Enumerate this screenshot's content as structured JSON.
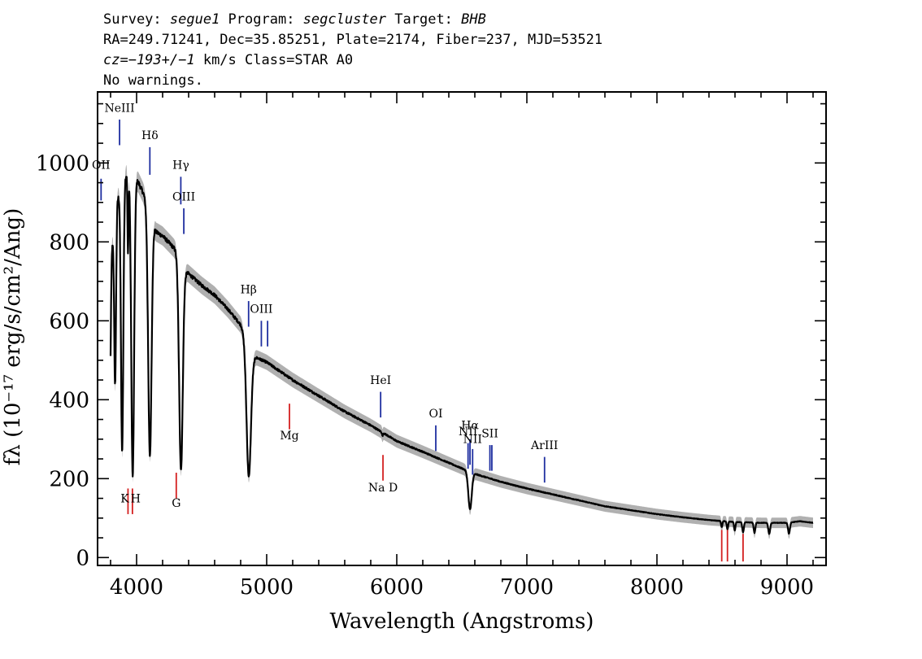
{
  "header": {
    "line1": [
      {
        "t": "Survey: ",
        "i": false
      },
      {
        "t": "segue1",
        "i": true
      },
      {
        "t": " Program: ",
        "i": false
      },
      {
        "t": "segcluster",
        "i": true
      },
      {
        "t": " Target: ",
        "i": false
      },
      {
        "t": "BHB",
        "i": true
      }
    ],
    "line2": [
      {
        "t": "RA=249.71241, Dec=35.85251, Plate=2174, Fiber=237, MJD=53521",
        "i": false
      }
    ],
    "line3": [
      {
        "t": "cz=−193+/−1",
        "i": true
      },
      {
        "t": " km/s Class=STAR A0",
        "i": false
      }
    ],
    "line4": [
      {
        "t": "No warnings.",
        "i": false
      }
    ]
  },
  "colors": {
    "emission": "#1f2fa0",
    "absorption": "#d42020",
    "spectrum": "#000000",
    "error_band": "#b0b0b0"
  },
  "chart_data": {
    "type": "line",
    "xlabel": "Wavelength (Angstroms)",
    "ylabel": "fλ (10⁻¹⁷ erg/s/cm²/Ang)",
    "xlim": [
      3700,
      9300
    ],
    "ylim": [
      -20,
      1180
    ],
    "x_ticks": [
      4000,
      5000,
      6000,
      7000,
      8000,
      9000
    ],
    "y_ticks": [
      0,
      200,
      400,
      600,
      800,
      1000
    ],
    "x_minor_step": 200,
    "y_minor_step": 50,
    "continuum": [
      [
        3800,
        750
      ],
      [
        3850,
        905
      ],
      [
        3900,
        960
      ],
      [
        3950,
        985
      ],
      [
        4000,
        960
      ],
      [
        4050,
        925
      ],
      [
        4100,
        880
      ],
      [
        4150,
        825
      ],
      [
        4200,
        815
      ],
      [
        4300,
        780
      ],
      [
        4380,
        725
      ],
      [
        4500,
        690
      ],
      [
        4600,
        665
      ],
      [
        4700,
        630
      ],
      [
        4800,
        590
      ],
      [
        4900,
        510
      ],
      [
        5000,
        495
      ],
      [
        5200,
        450
      ],
      [
        5400,
        410
      ],
      [
        5600,
        370
      ],
      [
        5800,
        335
      ],
      [
        6000,
        295
      ],
      [
        6200,
        268
      ],
      [
        6400,
        240
      ],
      [
        6600,
        212
      ],
      [
        6800,
        192
      ],
      [
        7000,
        175
      ],
      [
        7200,
        160
      ],
      [
        7400,
        145
      ],
      [
        7600,
        130
      ],
      [
        7800,
        120
      ],
      [
        8000,
        110
      ],
      [
        8200,
        102
      ],
      [
        8400,
        95
      ],
      [
        8600,
        90
      ],
      [
        8800,
        88
      ],
      [
        9000,
        88
      ],
      [
        9100,
        92
      ],
      [
        9200,
        88
      ]
    ],
    "absorption_features": [
      {
        "center": 3798,
        "depth": 260,
        "width": 5
      },
      {
        "center": 3835,
        "depth": 420,
        "width": 7
      },
      {
        "center": 3889,
        "depth": 680,
        "width": 9
      },
      {
        "center": 3934,
        "depth": 200,
        "width": 4
      },
      {
        "center": 3970,
        "depth": 770,
        "width": 11
      },
      {
        "center": 4102,
        "depth": 620,
        "width": 13
      },
      {
        "center": 4341,
        "depth": 530,
        "width": 14
      },
      {
        "center": 4862,
        "depth": 335,
        "width": 17
      },
      {
        "center": 5890,
        "depth": 8,
        "width": 4
      },
      {
        "center": 6563,
        "depth": 95,
        "width": 13
      },
      {
        "center": 8498,
        "depth": 15,
        "width": 5
      },
      {
        "center": 8542,
        "depth": 20,
        "width": 5
      },
      {
        "center": 8598,
        "depth": 22,
        "width": 5
      },
      {
        "center": 8662,
        "depth": 25,
        "width": 6
      },
      {
        "center": 8750,
        "depth": 26,
        "width": 6
      },
      {
        "center": 8863,
        "depth": 28,
        "width": 7
      },
      {
        "center": 9015,
        "depth": 28,
        "width": 7
      }
    ],
    "emission_lines": [
      {
        "label": "OII",
        "wave": 3727,
        "y_top": 960,
        "y_bottom": 905,
        "label_y": 985
      },
      {
        "label": "NeIII",
        "wave": 3869,
        "y_top": 1110,
        "y_bottom": 1045,
        "label_y": 1130
      },
      {
        "label": "Hδ",
        "wave": 4102,
        "y_top": 1040,
        "y_bottom": 970,
        "label_y": 1060
      },
      {
        "label": "Hγ",
        "wave": 4340,
        "y_top": 965,
        "y_bottom": 895,
        "label_y": 985
      },
      {
        "label": "OIII",
        "wave": 4363,
        "y_top": 885,
        "y_bottom": 820,
        "label_y": 905
      },
      {
        "label": "Hβ",
        "wave": 4861,
        "y_top": 650,
        "y_bottom": 585,
        "label_y": 670
      },
      {
        "label": "OIII",
        "wave": 4959,
        "y_top": 600,
        "y_bottom": 535,
        "label_y": 620
      },
      {
        "label": "",
        "wave": 5007,
        "y_top": 600,
        "y_bottom": 535,
        "label_y": null
      },
      {
        "label": "HeI",
        "wave": 5876,
        "y_top": 420,
        "y_bottom": 355,
        "label_y": 440
      },
      {
        "label": "OI",
        "wave": 6300,
        "y_top": 335,
        "y_bottom": 270,
        "label_y": 355
      },
      {
        "label": "NII",
        "wave": 6548,
        "y_top": 290,
        "y_bottom": 225,
        "label_y": 310
      },
      {
        "label": "Hα",
        "wave": 6563,
        "y_top": 300,
        "y_bottom": 235,
        "label_y": 325
      },
      {
        "label": "NII",
        "wave": 6583,
        "y_top": 275,
        "y_bottom": 210,
        "label_y": 290
      },
      {
        "label": "SII",
        "wave": 6716,
        "y_top": 285,
        "y_bottom": 220,
        "label_y": 305
      },
      {
        "label": "",
        "wave": 6731,
        "y_top": 285,
        "y_bottom": 220,
        "label_y": null
      },
      {
        "label": "ArIII",
        "wave": 7136,
        "y_top": 255,
        "y_bottom": 190,
        "label_y": 275
      }
    ],
    "absorption_lines": [
      {
        "label": "K",
        "wave": 3934,
        "y_top": 175,
        "y_bottom": 110,
        "label_y": 140,
        "label_dx": -4
      },
      {
        "label": "H",
        "wave": 3968,
        "y_top": 175,
        "y_bottom": 110,
        "label_y": 140,
        "label_dx": 4
      },
      {
        "label": "G",
        "wave": 4305,
        "y_top": 215,
        "y_bottom": 150,
        "label_y": 128,
        "label_dx": 0
      },
      {
        "label": "Mg",
        "wave": 5175,
        "y_top": 390,
        "y_bottom": 325,
        "label_y": 300,
        "label_dx": 0
      },
      {
        "label": "Na D",
        "wave": 5894,
        "y_top": 260,
        "y_bottom": 195,
        "label_y": 168,
        "label_dx": 0
      },
      {
        "label": "",
        "wave": 8498,
        "y_top": 70,
        "y_bottom": -10,
        "label_y": null,
        "label_dx": 0
      },
      {
        "label": "",
        "wave": 8542,
        "y_top": 70,
        "y_bottom": -10,
        "label_y": null,
        "label_dx": 0
      },
      {
        "label": "",
        "wave": 8662,
        "y_top": 60,
        "y_bottom": -10,
        "label_y": null,
        "label_dx": 0
      }
    ]
  }
}
